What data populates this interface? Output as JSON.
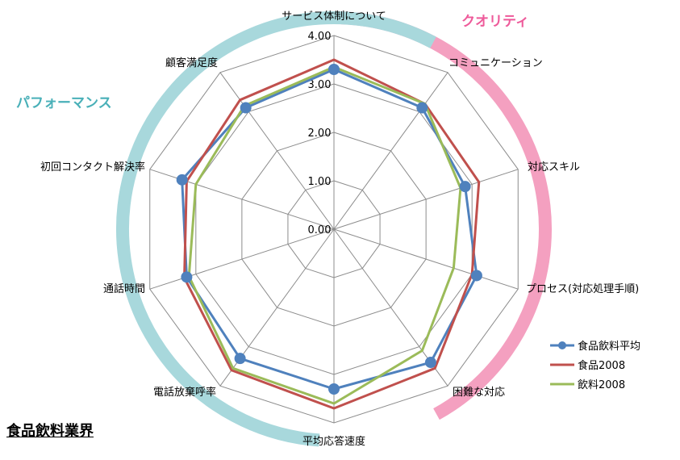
{
  "page_title": "食品飲料業界",
  "chart_data": {
    "type": "radar",
    "axes": [
      "サービス体制について",
      "コミュニケーション",
      "対応スキル",
      "プロセス(対応処理手順)",
      "困難な対応",
      "平均応答速度",
      "電話放棄呼率",
      "通話時間",
      "初回コンタクト解決率",
      "顧客満足度"
    ],
    "tick_labels": [
      "0.00",
      "1.00",
      "2.00",
      "3.00",
      "4.00"
    ],
    "ylim": [
      0,
      4
    ],
    "grid": true,
    "legend_position": "right",
    "series": [
      {
        "name": "食品飲料平均",
        "color": "#4f81bd",
        "marker": "circle",
        "values": [
          3.3,
          3.1,
          2.85,
          3.1,
          3.4,
          3.3,
          3.3,
          3.2,
          3.3,
          3.1
        ]
      },
      {
        "name": "食品2008",
        "color": "#c0504d",
        "marker": "none",
        "values": [
          3.5,
          3.2,
          3.15,
          3.0,
          3.55,
          3.7,
          3.6,
          3.25,
          3.2,
          3.3
        ]
      },
      {
        "name": "飲料2008",
        "color": "#9bbb59",
        "marker": "none",
        "values": [
          3.35,
          3.2,
          2.75,
          2.6,
          3.1,
          3.6,
          3.55,
          3.15,
          3.0,
          3.15
        ]
      }
    ],
    "groups": [
      {
        "label": "クオリティ",
        "color": "#f4a0c0"
      },
      {
        "label": "パフォーマンス",
        "color": "#a8d8dc"
      }
    ]
  }
}
